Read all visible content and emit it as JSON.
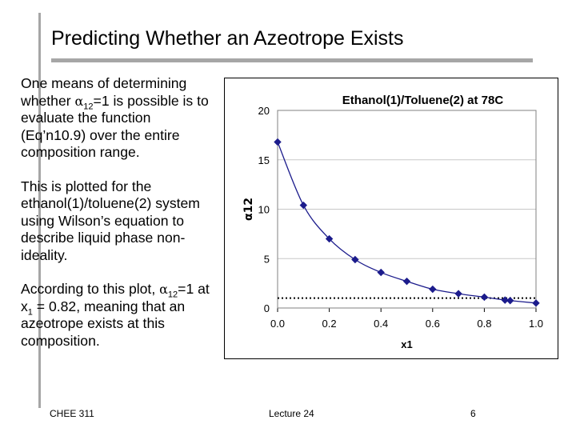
{
  "slide": {
    "title": "Predicting Whether an Azeotrope Exists",
    "footer_left": "CHEE 311",
    "footer_center": "Lecture 24",
    "footer_right": "6",
    "accent_color": "#a6a6a6"
  },
  "text": {
    "p1_a": "One means of determining whether ",
    "p1_alpha": "α",
    "p1_sub": "12",
    "p1_b": "=1 is possible is to evaluate the function (Eq’n10.9) over the entire composition range.",
    "p2": "This is plotted for the ethanol(1)/toluene(2) system using Wilson’s equation to describe liquid phase non-ideality.",
    "p3_a": "According to this plot, ",
    "p3_alpha": "α",
    "p3_sub": "12",
    "p3_b": "=1 at x",
    "p3_sub2": "1",
    "p3_c": " = 0.82, meaning that an azeotrope exists at this composition."
  },
  "chart_data": {
    "type": "line",
    "title": "Ethanol(1)/Toluene(2) at 78C",
    "xlabel": "x1",
    "ylabel": "α12",
    "xlim": [
      0.0,
      1.0
    ],
    "ylim": [
      0,
      20
    ],
    "xticks": [
      "0.0",
      "0.2",
      "0.4",
      "0.6",
      "0.8",
      "1.0"
    ],
    "yticks": [
      "0",
      "5",
      "10",
      "15",
      "20"
    ],
    "grid": "horizontal",
    "marker": "diamond",
    "series": [
      {
        "color": "#1c1c8c",
        "x": [
          0.0,
          0.1,
          0.2,
          0.3,
          0.4,
          0.5,
          0.6,
          0.7,
          0.8,
          0.88,
          0.9,
          1.0
        ],
        "y": [
          16.8,
          10.4,
          7.0,
          4.9,
          3.6,
          2.7,
          1.9,
          1.45,
          1.1,
          0.8,
          0.75,
          0.5
        ]
      }
    ],
    "reference_line": {
      "y": 1,
      "style": "dotted",
      "color": "#000000"
    }
  }
}
